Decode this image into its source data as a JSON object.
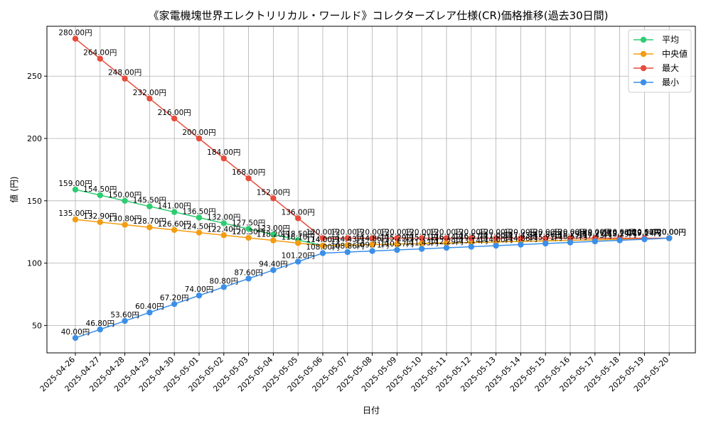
{
  "chart_data": {
    "type": "line",
    "title": "《家電機塊世界エレクトリリカル・ワールド》コレクターズレア仕様(CR)価格推移(過去30日間)",
    "xlabel": "日付",
    "ylabel": "値 (円)",
    "value_suffix": "円",
    "grid": true,
    "legend_position": "top-right",
    "ylim": [
      28,
      290
    ],
    "y_ticks": [
      50,
      100,
      150,
      200,
      250
    ],
    "x": [
      "2025-04-26",
      "2025-04-27",
      "2025-04-28",
      "2025-04-29",
      "2025-04-30",
      "2025-05-01",
      "2025-05-02",
      "2025-05-03",
      "2025-05-04",
      "2025-05-05",
      "2025-05-06",
      "2025-05-07",
      "2025-05-08",
      "2025-05-09",
      "2025-05-10",
      "2025-05-11",
      "2025-05-12",
      "2025-05-13",
      "2025-05-14",
      "2025-05-15",
      "2025-05-16",
      "2025-05-17",
      "2025-05-18",
      "2025-05-19",
      "2025-05-20"
    ],
    "series": [
      {
        "name": "平均",
        "color": "#2ecc71",
        "values": [
          159.0,
          154.5,
          150.0,
          145.5,
          141.0,
          136.5,
          132.0,
          127.5,
          123.0,
          118.5,
          114.0,
          114.43,
          114.86,
          115.29,
          115.71,
          116.14,
          116.57,
          117.0,
          117.43,
          117.86,
          118.29,
          118.71,
          119.14,
          119.57,
          120.0
        ]
      },
      {
        "name": "中央値",
        "color": "#f39c12",
        "values": [
          135.0,
          132.9,
          130.8,
          128.7,
          126.6,
          124.5,
          122.4,
          120.3,
          118.2,
          116.1,
          114.0,
          114.43,
          114.86,
          115.29,
          115.71,
          116.14,
          116.57,
          117.0,
          117.43,
          117.86,
          118.29,
          118.71,
          119.14,
          119.57,
          120.0
        ]
      },
      {
        "name": "最大",
        "color": "#e74c3c",
        "values": [
          280.0,
          264.0,
          248.0,
          232.0,
          216.0,
          200.0,
          184.0,
          168.0,
          152.0,
          136.0,
          120.0,
          120.0,
          120.0,
          120.0,
          120.0,
          120.0,
          120.0,
          120.0,
          120.0,
          120.0,
          120.0,
          120.0,
          120.0,
          120.0,
          120.0
        ]
      },
      {
        "name": "最小",
        "color": "#3b8fe8",
        "values": [
          40.0,
          46.8,
          53.6,
          60.4,
          67.2,
          74.0,
          80.8,
          87.6,
          94.4,
          101.2,
          108.0,
          108.86,
          109.71,
          110.57,
          111.43,
          112.29,
          113.14,
          114.0,
          114.86,
          115.71,
          116.57,
          117.43,
          118.29,
          119.14,
          120.0
        ]
      }
    ]
  }
}
